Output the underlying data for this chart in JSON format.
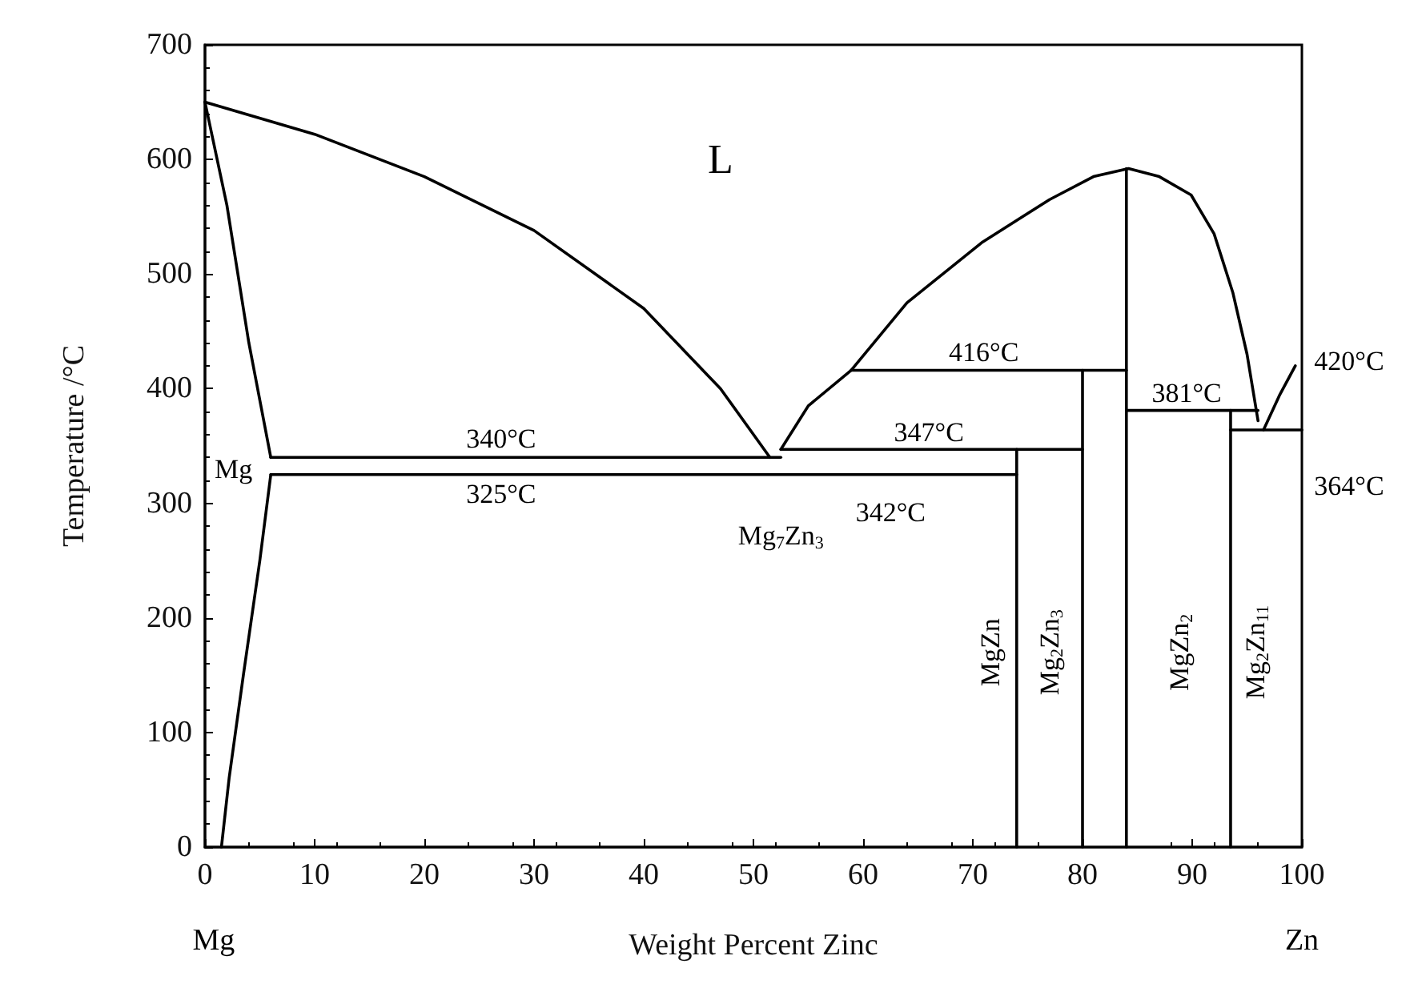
{
  "chart_data": {
    "type": "line",
    "xlabel": "Weight Percent Zinc",
    "ylabel": "Temperature /°C",
    "xlim": [
      0,
      100
    ],
    "xticks": [
      0,
      10,
      20,
      30,
      40,
      50,
      60,
      70,
      80,
      90,
      100
    ],
    "ylim": [
      0,
      700
    ],
    "yticks": [
      0,
      100,
      200,
      300,
      400,
      500,
      600,
      700
    ],
    "marker": "none",
    "line_style": "solid",
    "series": [
      {
        "color": "#000000",
        "x": [
          0,
          10,
          20,
          30,
          40,
          47,
          51.5
        ],
        "values": [
          650,
          622,
          585,
          538,
          470,
          400,
          340
        ]
      },
      {
        "color": "#000000",
        "x": [
          0,
          2,
          4,
          6
        ],
        "values": [
          650,
          560,
          440,
          340
        ]
      },
      {
        "color": "#000000",
        "x": [
          6,
          5,
          3.5,
          2.2,
          1.5
        ],
        "values": [
          325,
          250,
          150,
          60,
          0
        ]
      },
      {
        "color": "#000000",
        "x": [
          6,
          52.5
        ],
        "values": [
          340,
          340
        ]
      },
      {
        "color": "#000000",
        "x": [
          6,
          74
        ],
        "values": [
          325,
          325
        ]
      },
      {
        "color": "#000000",
        "x": [
          52.5,
          80
        ],
        "values": [
          347,
          347
        ]
      },
      {
        "color": "#000000",
        "x": [
          52.5,
          55,
          58.9,
          64,
          70.9,
          77,
          81,
          84.2,
          87,
          89.9,
          92,
          93.7,
          95,
          96
        ],
        "values": [
          347,
          385,
          416,
          475,
          528,
          565,
          585,
          592,
          585,
          569,
          535,
          484,
          430,
          372
        ]
      },
      {
        "color": "#000000",
        "x": [
          96.5,
          98,
          99.4
        ],
        "values": [
          364,
          395,
          420
        ]
      },
      {
        "color": "#000000",
        "x": [
          58.9,
          84
        ],
        "values": [
          416,
          416
        ]
      },
      {
        "color": "#000000",
        "x": [
          74,
          74
        ],
        "values": [
          0,
          347
        ]
      },
      {
        "color": "#000000",
        "x": [
          80,
          80
        ],
        "values": [
          0,
          416
        ]
      },
      {
        "color": "#000000",
        "x": [
          84,
          84
        ],
        "values": [
          0,
          592
        ]
      },
      {
        "color": "#000000",
        "x": [
          84,
          96
        ],
        "values": [
          381,
          381
        ]
      },
      {
        "color": "#000000",
        "x": [
          93.5,
          93.5
        ],
        "values": [
          0,
          381
        ]
      },
      {
        "color": "#000000",
        "x": [
          93.5,
          100
        ],
        "values": [
          364,
          364
        ]
      }
    ],
    "annotations": [
      "L",
      "340°C",
      "325°C",
      "Mg",
      "Mg$_{7}$Zn$_{3}$",
      "342°C",
      "347°C",
      "416°C",
      "381°C",
      "420°C",
      "364°C",
      "MgZn",
      "Mg$_{2}$Zn$_{3}$",
      "MgZn$_{2}$",
      "Mg$_{2}$Zn$_{11}$",
      "Mg",
      "Zn"
    ]
  }
}
